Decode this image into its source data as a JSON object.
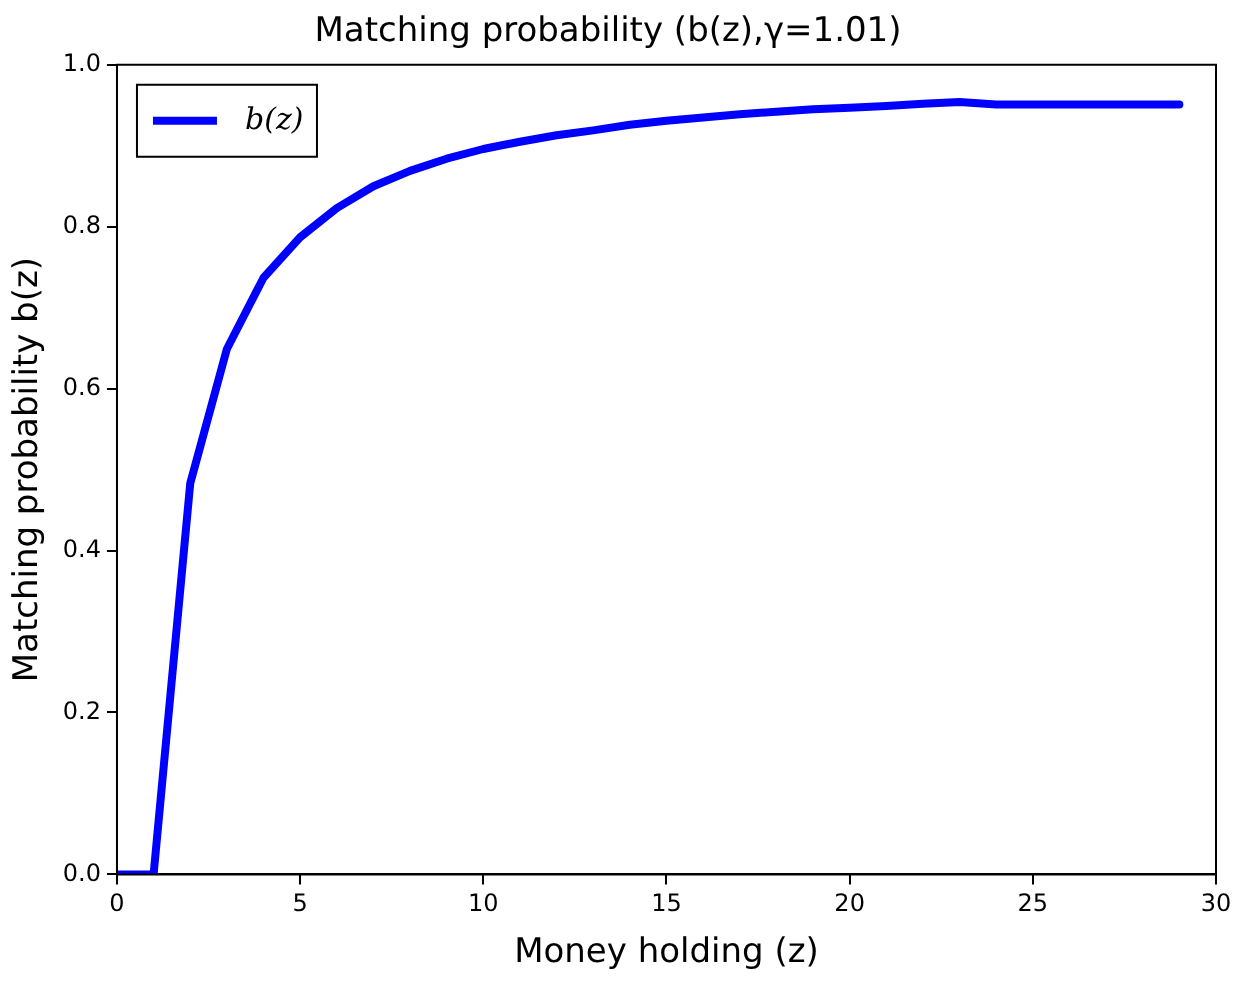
{
  "chart_data": {
    "type": "line",
    "title": "Matching probability (b(z),γ=1.01)",
    "xlabel": "Money holding (z)",
    "ylabel": "Matching probability b(z)",
    "x": [
      0,
      1,
      2,
      3,
      4,
      5,
      6,
      7,
      8,
      9,
      10,
      11,
      12,
      13,
      14,
      15,
      16,
      17,
      18,
      19,
      20,
      21,
      22,
      23,
      24,
      25,
      26,
      27,
      28,
      29
    ],
    "series": [
      {
        "name": "b(z)",
        "color": "#0000ff",
        "values": [
          0,
          0,
          0.483,
          0.649,
          0.737,
          0.787,
          0.823,
          0.85,
          0.869,
          0.884,
          0.896,
          0.905,
          0.913,
          0.919,
          0.926,
          0.931,
          0.935,
          0.939,
          0.942,
          0.945,
          0.947,
          0.949,
          0.952,
          0.954,
          0.951,
          0.951,
          0.951,
          0.951,
          0.951,
          0.951
        ]
      }
    ],
    "xlim": [
      0,
      30
    ],
    "xticks": [
      0,
      5,
      10,
      15,
      20,
      25,
      30
    ],
    "ylim": [
      0,
      1
    ],
    "yticks": [
      {
        "value": 0,
        "label": "0.0"
      },
      {
        "value": 0.2,
        "label": "0.2"
      },
      {
        "value": 0.4,
        "label": "0.4"
      },
      {
        "value": 0.6,
        "label": "0.6"
      },
      {
        "value": 0.8,
        "label": "0.8"
      },
      {
        "value": 1,
        "label": "1.0"
      }
    ],
    "legend": "top left",
    "grid": false,
    "marker": "none",
    "line_style": "solid"
  }
}
